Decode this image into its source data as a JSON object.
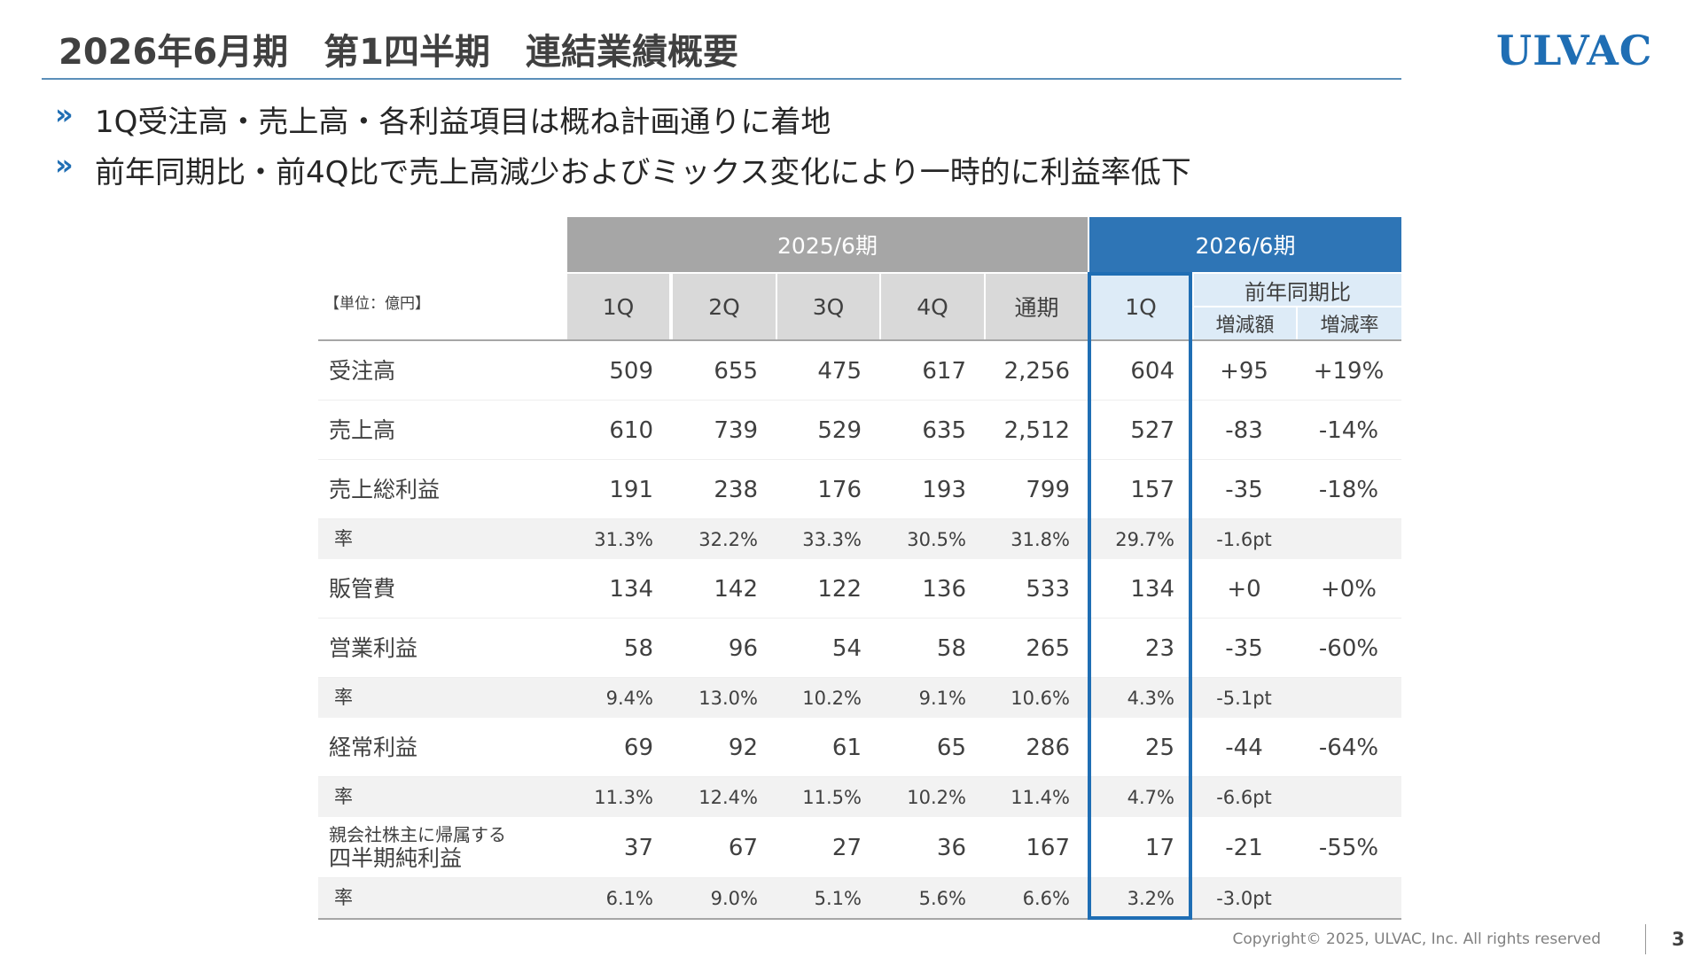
{
  "header": {
    "title": "2026年6月期　第1四半期　連結業績概要",
    "logo": "ULVAC"
  },
  "bullets": [
    "1Q受注高・売上高・各利益項目は概ね計画通りに着地",
    "前年同期比・前4Q比で売上高減少およびミックス変化により一時的に利益率低下"
  ],
  "table": {
    "unit": "【単位：億円】",
    "groups": [
      "2025/6期",
      "2026/6期"
    ],
    "columns": [
      "1Q",
      "2Q",
      "3Q",
      "4Q",
      "通期",
      "1Q"
    ],
    "comparison": "前年同期比",
    "comparison_columns": [
      "増減額",
      "増減率"
    ],
    "rows": [
      {
        "label": [
          "受注高"
        ],
        "cells": [
          "509",
          "655",
          "475",
          "617",
          "2,256",
          "604",
          "+95",
          "+19%"
        ]
      },
      {
        "label": [
          "売上高"
        ],
        "cells": [
          "610",
          "739",
          "529",
          "635",
          "2,512",
          "527",
          "-83",
          "-14%"
        ]
      },
      {
        "label": [
          "売上総利益"
        ],
        "cells": [
          "191",
          "238",
          "176",
          "193",
          "799",
          "157",
          "-35",
          "-18%"
        ]
      },
      {
        "label": [
          "率"
        ],
        "cells": [
          "31.3%",
          "32.2%",
          "33.3%",
          "30.5%",
          "31.8%",
          "29.7%",
          "-1.6pt"
        ]
      },
      {
        "label": [
          "販管費"
        ],
        "cells": [
          "134",
          "142",
          "122",
          "136",
          "533",
          "134",
          "+0",
          "+0%"
        ]
      },
      {
        "label": [
          "営業利益"
        ],
        "cells": [
          "58",
          "96",
          "54",
          "58",
          "265",
          "23",
          "-35",
          "-60%"
        ]
      },
      {
        "label": [
          "率"
        ],
        "cells": [
          "9.4%",
          "13.0%",
          "10.2%",
          "9.1%",
          "10.6%",
          "4.3%",
          "-5.1pt"
        ]
      },
      {
        "label": [
          "経常利益"
        ],
        "cells": [
          "69",
          "92",
          "61",
          "65",
          "286",
          "25",
          "-44",
          "-64%"
        ]
      },
      {
        "label": [
          "率"
        ],
        "cells": [
          "11.3%",
          "12.4%",
          "11.5%",
          "10.2%",
          "11.4%",
          "4.7%",
          "-6.6pt"
        ]
      },
      {
        "label": [
          "親会社株主に帰属する",
          "四半期純利益"
        ],
        "cells": [
          "37",
          "67",
          "27",
          "36",
          "167",
          "17",
          "-21",
          "-55%"
        ]
      },
      {
        "label": [
          "率"
        ],
        "cells": [
          "6.1%",
          "9.0%",
          "5.1%",
          "5.6%",
          "6.6%",
          "3.2%",
          "-3.0pt"
        ]
      }
    ]
  },
  "footer": {
    "copyright": "Copyright© 2025, ULVAC, Inc. All rights reserved",
    "page": "3"
  }
}
